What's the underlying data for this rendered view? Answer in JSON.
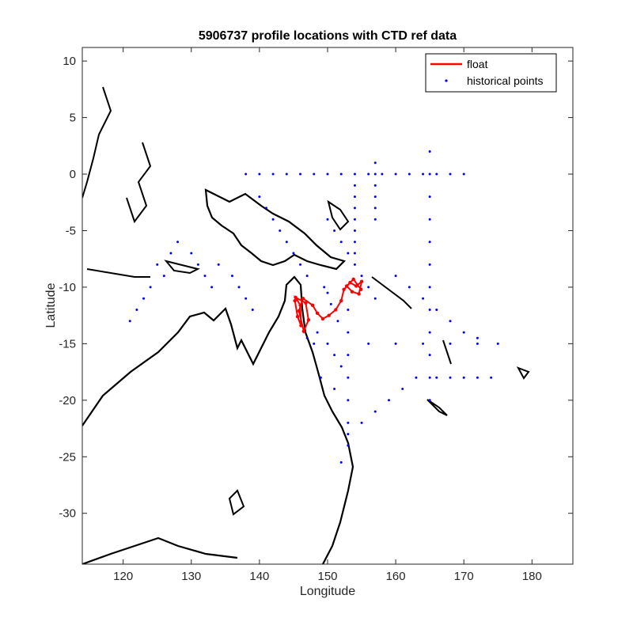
{
  "chart_data": {
    "type": "scatter",
    "title": "5906737 profile locations with CTD ref data",
    "xlabel": "Longitude",
    "ylabel": "Latitude",
    "xlim": [
      114,
      186
    ],
    "ylim": [
      -34.5,
      11.2
    ],
    "xticks": [
      120,
      130,
      140,
      150,
      160,
      170,
      180
    ],
    "yticks": [
      10,
      5,
      0,
      -5,
      -10,
      -15,
      -20,
      -25,
      -30
    ],
    "xtick_labels": [
      "120",
      "130",
      "140",
      "150",
      "160",
      "170",
      "180"
    ],
    "ytick_labels": [
      "10",
      "5",
      "0",
      "-5",
      "-10",
      "-15",
      "-20",
      "-25",
      "-30"
    ],
    "grid": false,
    "legend": {
      "position": "top-right",
      "entries": [
        {
          "label": "float",
          "marker": "line",
          "color": "#ff0000"
        },
        {
          "label": "historical points",
          "marker": "dot",
          "color": "#0000ff"
        }
      ]
    },
    "series": [
      {
        "name": "float",
        "color": "#ff0000",
        "description_points": [
          [
            145.2,
            -11.2
          ],
          [
            145.6,
            -12.6
          ],
          [
            146.1,
            -13.4
          ],
          [
            146.0,
            -11.6
          ],
          [
            145.3,
            -10.9
          ],
          [
            146.8,
            -11.4
          ],
          [
            147.2,
            -12.9
          ],
          [
            146.5,
            -13.9
          ],
          [
            145.8,
            -12.1
          ],
          [
            146.4,
            -11.0
          ],
          [
            147.8,
            -11.6
          ],
          [
            148.5,
            -12.3
          ],
          [
            149.3,
            -12.8
          ],
          [
            150.2,
            -12.5
          ],
          [
            151.2,
            -12.0
          ],
          [
            152.0,
            -11.2
          ],
          [
            152.4,
            -10.2
          ],
          [
            153.3,
            -9.6
          ],
          [
            154.2,
            -9.9
          ],
          [
            155.0,
            -9.5
          ],
          [
            154.6,
            -10.6
          ],
          [
            153.6,
            -10.4
          ],
          [
            152.8,
            -9.9
          ],
          [
            153.8,
            -9.3
          ],
          [
            154.9,
            -10.2
          ]
        ]
      },
      {
        "name": "historical points",
        "color": "#0000ff",
        "points": [
          [
            138,
            0
          ],
          [
            140,
            0
          ],
          [
            142,
            0
          ],
          [
            144,
            0
          ],
          [
            146,
            0
          ],
          [
            148,
            0
          ],
          [
            150,
            0
          ],
          [
            152,
            0
          ],
          [
            154,
            0
          ],
          [
            156,
            0
          ],
          [
            158,
            0
          ],
          [
            160,
            0
          ],
          [
            162,
            0
          ],
          [
            164,
            0
          ],
          [
            166,
            0
          ],
          [
            168,
            0
          ],
          [
            170,
            0
          ],
          [
            140,
            -2
          ],
          [
            141,
            -3
          ],
          [
            142,
            -4
          ],
          [
            143,
            -5
          ],
          [
            144,
            -6
          ],
          [
            145,
            -7
          ],
          [
            146,
            -8
          ],
          [
            147,
            -9
          ],
          [
            150,
            -4
          ],
          [
            151,
            -5
          ],
          [
            152,
            -6
          ],
          [
            153,
            -7
          ],
          [
            154,
            -8
          ],
          [
            155,
            -9
          ],
          [
            156,
            -10
          ],
          [
            157,
            -11
          ],
          [
            154,
            -1
          ],
          [
            154,
            -2
          ],
          [
            154,
            -3
          ],
          [
            154,
            -4
          ],
          [
            154,
            -5
          ],
          [
            154,
            -6
          ],
          [
            154,
            -7
          ],
          [
            157,
            1
          ],
          [
            157,
            0
          ],
          [
            157,
            -1
          ],
          [
            157,
            -2
          ],
          [
            157,
            -3
          ],
          [
            157,
            -4
          ],
          [
            165,
            2
          ],
          [
            165,
            0
          ],
          [
            165,
            -2
          ],
          [
            165,
            -4
          ],
          [
            165,
            -6
          ],
          [
            165,
            -8
          ],
          [
            165,
            -10
          ],
          [
            165,
            -12
          ],
          [
            165,
            -14
          ],
          [
            165,
            -16
          ],
          [
            165,
            -18
          ],
          [
            165,
            -20
          ],
          [
            160,
            -9
          ],
          [
            162,
            -10
          ],
          [
            164,
            -11
          ],
          [
            166,
            -12
          ],
          [
            168,
            -13
          ],
          [
            170,
            -14
          ],
          [
            172,
            -14.5
          ],
          [
            153,
            -12
          ],
          [
            153,
            -14
          ],
          [
            153,
            -16
          ],
          [
            153,
            -18
          ],
          [
            153,
            -20
          ],
          [
            153,
            -22
          ],
          [
            153,
            -24
          ],
          [
            152,
            -25.5
          ],
          [
            153,
            -23
          ],
          [
            155,
            -22
          ],
          [
            157,
            -21
          ],
          [
            159,
            -20
          ],
          [
            161,
            -19
          ],
          [
            163,
            -18
          ],
          [
            150,
            -15
          ],
          [
            151,
            -16
          ],
          [
            152,
            -17
          ],
          [
            149,
            -18
          ],
          [
            151,
            -19
          ],
          [
            147,
            -14.5
          ],
          [
            148,
            -15
          ],
          [
            156,
            -15
          ],
          [
            160,
            -15
          ],
          [
            164,
            -15
          ],
          [
            168,
            -15
          ],
          [
            172,
            -15
          ],
          [
            175,
            -15
          ],
          [
            166,
            -18
          ],
          [
            168,
            -18
          ],
          [
            170,
            -18
          ],
          [
            172,
            -18
          ],
          [
            174,
            -18
          ],
          [
            125,
            -8
          ],
          [
            126,
            -9
          ],
          [
            124,
            -10
          ],
          [
            123,
            -11
          ],
          [
            122,
            -12
          ],
          [
            121,
            -13
          ],
          [
            130,
            -7
          ],
          [
            131,
            -8
          ],
          [
            132,
            -9
          ],
          [
            133,
            -10
          ],
          [
            128,
            -6
          ],
          [
            127,
            -7
          ],
          [
            134,
            -8
          ],
          [
            136,
            -9
          ],
          [
            137,
            -10
          ],
          [
            138,
            -11
          ],
          [
            139,
            -12
          ],
          [
            150,
            -10.5
          ],
          [
            150.5,
            -11.5
          ],
          [
            148.5,
            -14
          ],
          [
            149.5,
            -10
          ],
          [
            151.5,
            -13
          ]
        ]
      }
    ]
  }
}
